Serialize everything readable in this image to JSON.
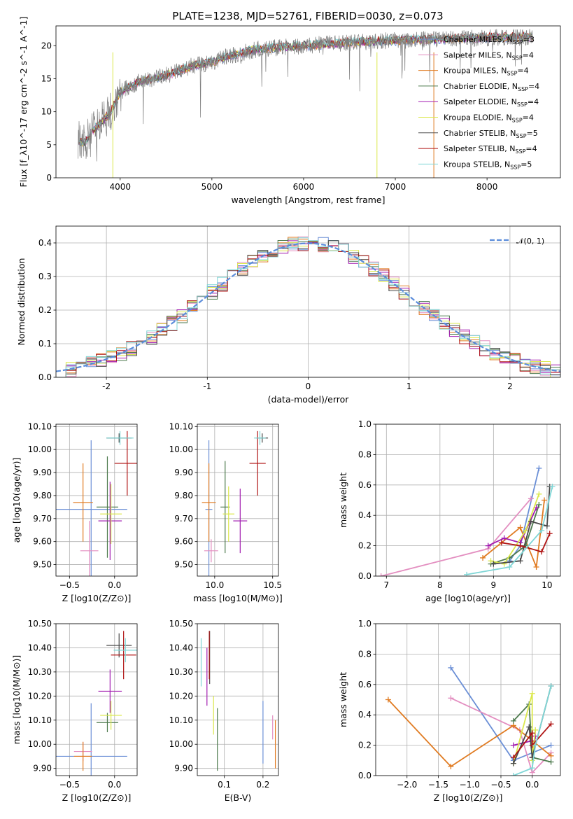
{
  "title": "PLATE=1238, MJD=52761, FIBERID=0030, z=0.073",
  "colors": {
    "Chabrier MILES": "#6b8fd6",
    "Salpeter MILES": "#e38ec0",
    "Kroupa MILES": "#e07b22",
    "Chabrier ELODIE": "#4d7a4d",
    "Salpeter ELODIE": "#a21cb0",
    "Kroupa ELODIE": "#dbe84c",
    "Chabrier STELIB": "#4a4a4a",
    "Salpeter STELIB": "#b01515",
    "Kroupa STELIB": "#7fd6d6",
    "data": "#808080",
    "gaussian": "#5b8ddb"
  },
  "chart_data": [
    {
      "id": "spectrum",
      "type": "line",
      "xlabel": "wavelength [Angstrom, rest frame]",
      "ylabel": "Flux [f_λ10^-17 erg cm^-2 s^-1 A^-1]",
      "xlim": [
        3300,
        8800
      ],
      "ylim": [
        0,
        23
      ],
      "xticks": [
        4000,
        5000,
        6000,
        7000,
        8000
      ],
      "yticks": [
        0,
        5,
        10,
        15,
        20
      ],
      "continuum": {
        "x": [
          3500,
          3600,
          3700,
          3800,
          3900,
          4000,
          4200,
          4500,
          4800,
          5000,
          5200,
          5500,
          5800,
          6000,
          6500,
          7000,
          7500,
          8000,
          8500,
          8800
        ],
        "y": [
          6.5,
          5.0,
          7.0,
          8.5,
          10.0,
          13.0,
          14.5,
          15.5,
          17.0,
          17.5,
          18.5,
          19.5,
          19.8,
          20.0,
          20.5,
          20.8,
          21.0,
          21.2,
          21.3,
          21.5
        ]
      },
      "legend": [
        {
          "label": "Chabrier MILES",
          "nssp": "3"
        },
        {
          "label": "Salpeter MILES",
          "nssp": "4"
        },
        {
          "label": "Kroupa MILES",
          "nssp": "4"
        },
        {
          "label": "Chabrier ELODIE",
          "nssp": "4"
        },
        {
          "label": "Salpeter ELODIE",
          "nssp": "4"
        },
        {
          "label": "Kroupa ELODIE",
          "nssp": "4"
        },
        {
          "label": "Chabrier STELIB",
          "nssp": "5"
        },
        {
          "label": "Salpeter STELIB",
          "nssp": "4"
        },
        {
          "label": "Kroupa STELIB",
          "nssp": "5"
        }
      ],
      "legend_suffix": "SSP",
      "legend_placement": "right"
    },
    {
      "id": "residual_histogram",
      "type": "area",
      "xlabel": "(data-model)/error",
      "ylabel": "Normed distribution",
      "xlim": [
        -2.5,
        2.5
      ],
      "ylim": [
        0,
        0.45
      ],
      "xticks": [
        -2,
        -1,
        0,
        1,
        2
      ],
      "yticks": [
        0.0,
        0.1,
        0.2,
        0.3,
        0.4
      ],
      "bin_width": 0.1,
      "series_name": "𝒩(0, 1)",
      "legend_placement": "top-right",
      "grid": true
    },
    {
      "id": "age_vs_Z",
      "type": "scatter",
      "xlabel": "Z [log10(Z/Z⊙)]",
      "ylabel": "age [log10(age/yr)]",
      "xlim": [
        -0.65,
        0.25
      ],
      "ylim": [
        9.45,
        10.11
      ],
      "xticks": [
        -0.5,
        0.0
      ],
      "yticks": [
        9.5,
        9.6,
        9.7,
        9.8,
        9.9,
        10.0,
        10.1
      ],
      "points": [
        {
          "model": "Chabrier MILES",
          "x": -0.26,
          "y": 9.74,
          "xerr": 0.4,
          "yerr": 0.3
        },
        {
          "model": "Salpeter MILES",
          "x": -0.28,
          "y": 9.56,
          "xerr": 0.1,
          "yerr": 0.13
        },
        {
          "model": "Kroupa MILES",
          "x": -0.35,
          "y": 9.77,
          "xerr": 0.11,
          "yerr": 0.17
        },
        {
          "model": "Chabrier ELODIE",
          "x": -0.08,
          "y": 9.75,
          "xerr": 0.12,
          "yerr": 0.22
        },
        {
          "model": "Salpeter ELODIE",
          "x": -0.05,
          "y": 9.69,
          "xerr": 0.13,
          "yerr": 0.17
        },
        {
          "model": "Kroupa ELODIE",
          "x": -0.04,
          "y": 9.72,
          "xerr": 0.12,
          "yerr": 0.13
        },
        {
          "model": "Chabrier STELIB",
          "x": 0.05,
          "y": 10.05,
          "xerr": 0.14,
          "yerr": 0.02
        },
        {
          "model": "Salpeter STELIB",
          "x": 0.14,
          "y": 9.94,
          "xerr": 0.14,
          "yerr": 0.14
        },
        {
          "model": "Kroupa STELIB",
          "x": 0.06,
          "y": 10.05,
          "xerr": 0.15,
          "yerr": 0.03
        }
      ]
    },
    {
      "id": "age_vs_mass",
      "type": "scatter",
      "xlabel": "mass [log10(M/M⊙)]",
      "ylabel": "",
      "xlim": [
        9.85,
        10.55
      ],
      "ylim": [
        9.45,
        10.11
      ],
      "xticks": [
        10.0,
        10.5
      ],
      "yticks": [
        9.5,
        9.6,
        9.7,
        9.8,
        9.9,
        10.0,
        10.1
      ],
      "points": [
        {
          "model": "Chabrier MILES",
          "x": 9.95,
          "y": 9.74,
          "xerr": 0.03,
          "yerr": 0.3
        },
        {
          "model": "Salpeter MILES",
          "x": 9.97,
          "y": 9.56,
          "xerr": 0.06,
          "yerr": 0.05
        },
        {
          "model": "Kroupa MILES",
          "x": 9.95,
          "y": 9.77,
          "xerr": 0.06,
          "yerr": 0.17
        },
        {
          "model": "Chabrier ELODIE",
          "x": 10.09,
          "y": 9.75,
          "xerr": 0.04,
          "yerr": 0.2
        },
        {
          "model": "Salpeter ELODIE",
          "x": 10.22,
          "y": 9.69,
          "xerr": 0.06,
          "yerr": 0.14
        },
        {
          "model": "Kroupa ELODIE",
          "x": 10.12,
          "y": 9.72,
          "xerr": 0.05,
          "yerr": 0.12
        },
        {
          "model": "Chabrier STELIB",
          "x": 10.41,
          "y": 10.05,
          "xerr": 0.05,
          "yerr": 0.02
        },
        {
          "model": "Salpeter STELIB",
          "x": 10.37,
          "y": 9.94,
          "xerr": 0.07,
          "yerr": 0.14
        },
        {
          "model": "Kroupa STELIB",
          "x": 10.39,
          "y": 10.05,
          "xerr": 0.05,
          "yerr": 0.03
        }
      ]
    },
    {
      "id": "mass_weight_vs_age",
      "type": "line",
      "xlabel": "age [log10(age/yr)]",
      "ylabel": "mass weight",
      "xlim": [
        6.8,
        10.25
      ],
      "ylim": [
        0,
        1
      ],
      "xticks": [
        7,
        8,
        9,
        10
      ],
      "yticks": [
        0.0,
        0.2,
        0.4,
        0.6,
        0.8,
        1.0
      ],
      "series": [
        {
          "name": "Chabrier MILES",
          "x": [
            9.3,
            9.5,
            9.85
          ],
          "y": [
            0.1,
            0.2,
            0.71
          ]
        },
        {
          "name": "Salpeter MILES",
          "x": [
            6.9,
            8.9,
            9.7
          ],
          "y": [
            0.0,
            0.18,
            0.51
          ]
        },
        {
          "name": "Kroupa MILES",
          "x": [
            8.8,
            9.5,
            9.8,
            9.95
          ],
          "y": [
            0.12,
            0.32,
            0.06,
            0.5
          ]
        },
        {
          "name": "Chabrier ELODIE",
          "x": [
            8.95,
            9.3,
            9.6,
            9.85
          ],
          "y": [
            0.08,
            0.12,
            0.2,
            0.47
          ]
        },
        {
          "name": "Salpeter ELODIE",
          "x": [
            8.9,
            9.2,
            9.5,
            9.8
          ],
          "y": [
            0.2,
            0.25,
            0.22,
            0.45
          ]
        },
        {
          "name": "Kroupa ELODIE",
          "x": [
            8.95,
            9.2,
            9.6,
            9.85
          ],
          "y": [
            0.1,
            0.08,
            0.3,
            0.54
          ]
        },
        {
          "name": "Chabrier STELIB",
          "x": [
            9.0,
            9.5,
            9.7,
            10.0,
            10.05
          ],
          "y": [
            0.08,
            0.1,
            0.36,
            0.33,
            0.59
          ]
        },
        {
          "name": "Salpeter STELIB",
          "x": [
            9.15,
            9.5,
            9.9,
            10.05
          ],
          "y": [
            0.22,
            0.2,
            0.16,
            0.28
          ]
        },
        {
          "name": "Kroupa STELIB",
          "x": [
            8.5,
            9.3,
            9.9,
            10.1
          ],
          "y": [
            0.01,
            0.06,
            0.3,
            0.59
          ]
        }
      ]
    },
    {
      "id": "mass_vs_Z",
      "type": "scatter",
      "xlabel": "Z [log10(Z/Z⊙)]",
      "ylabel": "mass [log10(M/M⊙)]",
      "xlim": [
        -0.65,
        0.25
      ],
      "ylim": [
        9.87,
        10.5
      ],
      "xticks": [
        -0.5,
        0.0
      ],
      "yticks": [
        9.9,
        10.0,
        10.1,
        10.2,
        10.3,
        10.4,
        10.5
      ],
      "points": [
        {
          "model": "Chabrier MILES",
          "x": -0.26,
          "y": 9.95,
          "xerr": 0.4,
          "yerr": 0.22
        },
        {
          "model": "Salpeter MILES",
          "x": -0.35,
          "y": 9.97,
          "xerr": 0.1,
          "yerr": 0.04
        },
        {
          "model": "Kroupa MILES",
          "x": -0.35,
          "y": 9.95,
          "xerr": 0.1,
          "yerr": 0.06
        },
        {
          "model": "Chabrier ELODIE",
          "x": -0.08,
          "y": 10.09,
          "xerr": 0.12,
          "yerr": 0.04
        },
        {
          "model": "Salpeter ELODIE",
          "x": -0.05,
          "y": 10.22,
          "xerr": 0.13,
          "yerr": 0.09
        },
        {
          "model": "Kroupa ELODIE",
          "x": -0.04,
          "y": 10.12,
          "xerr": 0.12,
          "yerr": 0.06
        },
        {
          "model": "Chabrier STELIB",
          "x": 0.05,
          "y": 10.41,
          "xerr": 0.14,
          "yerr": 0.05
        },
        {
          "model": "Salpeter STELIB",
          "x": 0.1,
          "y": 10.37,
          "xerr": 0.14,
          "yerr": 0.1
        },
        {
          "model": "Kroupa STELIB",
          "x": 0.12,
          "y": 10.39,
          "xerr": 0.13,
          "yerr": 0.05
        }
      ]
    },
    {
      "id": "mass_vs_ebv",
      "type": "scatter",
      "xlabel": "E(B-V)",
      "ylabel": "",
      "xlim": [
        0.03,
        0.24
      ],
      "ylim": [
        9.87,
        10.5
      ],
      "xticks": [
        0.1,
        0.2
      ],
      "yticks": [
        9.9,
        10.0,
        10.1,
        10.2,
        10.3,
        10.4,
        10.5
      ],
      "points": [
        {
          "model": "Chabrier MILES",
          "x": 0.2,
          "y": 10.05,
          "yerr": 0.13
        },
        {
          "model": "Salpeter MILES",
          "x": 0.225,
          "y": 10.07,
          "yerr": 0.05
        },
        {
          "model": "Kroupa MILES",
          "x": 0.232,
          "y": 10.0,
          "yerr": 0.1
        },
        {
          "model": "Chabrier ELODIE",
          "x": 0.082,
          "y": 10.02,
          "yerr": 0.13
        },
        {
          "model": "Salpeter ELODIE",
          "x": 0.055,
          "y": 10.28,
          "yerr": 0.12
        },
        {
          "model": "Kroupa ELODIE",
          "x": 0.072,
          "y": 10.12,
          "yerr": 0.08
        },
        {
          "model": "Chabrier STELIB",
          "x": 0.062,
          "y": 10.36,
          "yerr": 0.11
        },
        {
          "model": "Salpeter STELIB",
          "x": 0.061,
          "y": 10.37,
          "yerr": 0.1
        },
        {
          "model": "Kroupa STELIB",
          "x": 0.04,
          "y": 10.34,
          "yerr": 0.1
        }
      ]
    },
    {
      "id": "mass_weight_vs_Z",
      "type": "line",
      "xlabel": "Z [log10(Z/Z⊙)]",
      "ylabel": "mass weight",
      "xlim": [
        -2.5,
        0.45
      ],
      "ylim": [
        0,
        1
      ],
      "xticks": [
        -2.0,
        -1.5,
        -1.0,
        -0.5,
        0.0
      ],
      "yticks": [
        0.0,
        0.2,
        0.4,
        0.6,
        0.8,
        1.0
      ],
      "series": [
        {
          "name": "Chabrier MILES",
          "x": [
            -1.3,
            -0.3,
            0.3
          ],
          "y": [
            0.71,
            0.1,
            0.2
          ]
        },
        {
          "name": "Salpeter MILES",
          "x": [
            -1.3,
            -0.2,
            0.0,
            0.3
          ],
          "y": [
            0.51,
            0.3,
            0.02,
            0.15
          ]
        },
        {
          "name": "Kroupa MILES",
          "x": [
            -2.3,
            -1.3,
            -0.3,
            0.3
          ],
          "y": [
            0.5,
            0.06,
            0.33,
            0.13
          ]
        },
        {
          "name": "Chabrier ELODIE",
          "x": [
            -0.3,
            -0.05,
            0.0,
            0.3
          ],
          "y": [
            0.36,
            0.47,
            0.12,
            0.09
          ]
        },
        {
          "name": "Salpeter ELODIE",
          "x": [
            -0.3,
            0.0,
            0.0,
            0.05
          ],
          "y": [
            0.2,
            0.23,
            0.12,
            0.26
          ]
        },
        {
          "name": "Kroupa ELODIE",
          "x": [
            -0.3,
            0.0,
            0.0,
            0.05
          ],
          "y": [
            0.08,
            0.54,
            0.1,
            0.3
          ]
        },
        {
          "name": "Chabrier STELIB",
          "x": [
            -0.3,
            -0.05,
            0.0,
            0.3
          ],
          "y": [
            0.08,
            0.32,
            0.12,
            0.59
          ]
        },
        {
          "name": "Salpeter STELIB",
          "x": [
            -0.3,
            0.0,
            0.0,
            0.3
          ],
          "y": [
            0.12,
            0.28,
            0.2,
            0.34
          ]
        },
        {
          "name": "Kroupa STELIB",
          "x": [
            -0.3,
            0.0,
            0.05,
            0.3
          ],
          "y": [
            0.0,
            0.05,
            0.2,
            0.59
          ]
        }
      ]
    }
  ]
}
